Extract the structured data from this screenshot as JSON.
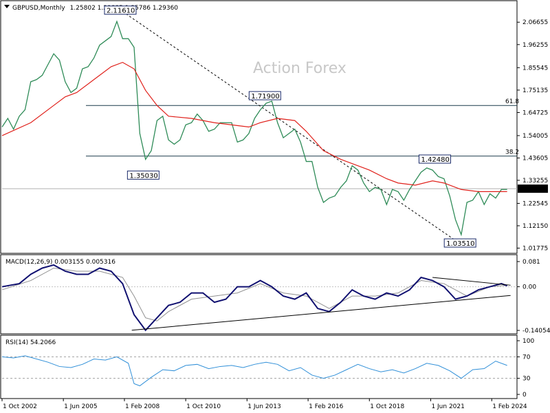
{
  "header": {
    "symbol": "GBPUSD,Monthly",
    "ohlc": "1.25802 1.29885 1.25786 1.29360"
  },
  "watermark": "Action Forex",
  "chart_data": [
    {
      "type": "line",
      "title": "GBPUSD,Monthly",
      "x_ticks": [
        "1 Oct 2002",
        "1 Jun 2005",
        "1 Feb 2008",
        "1 Oct 2010",
        "1 Jun 2013",
        "1 Feb 2016",
        "1 Oct 2018",
        "1 Jun 2021",
        "1 Feb 2024"
      ],
      "y_ticks": [
        "2.06655",
        "1.96255",
        "1.85545",
        "1.75135",
        "1.64725",
        "1.54005",
        "1.43605",
        "1.33255",
        "1.22545",
        "1.12150",
        "1.01775"
      ],
      "ylim": [
        1.0,
        2.16
      ],
      "current_price": "1.29360",
      "series": [
        {
          "name": "",
          "color": "#2e8b57",
          "x": [
            2002.75,
            2003.0,
            2003.25,
            2003.5,
            2003.75,
            2004.0,
            2004.25,
            2004.5,
            2004.75,
            2005.0,
            2005.25,
            2005.5,
            2005.75,
            2006.0,
            2006.25,
            2006.5,
            2006.75,
            2007.0,
            2007.25,
            2007.5,
            2007.75,
            2008.0,
            2008.25,
            2008.5,
            2008.75,
            2009.0,
            2009.25,
            2009.5,
            2009.75,
            2010.0,
            2010.25,
            2010.5,
            2010.75,
            2011.0,
            2011.25,
            2011.5,
            2011.75,
            2012.0,
            2012.25,
            2012.5,
            2012.75,
            2013.0,
            2013.25,
            2013.5,
            2013.75,
            2014.0,
            2014.25,
            2014.5,
            2014.75,
            2015.0,
            2015.25,
            2015.5,
            2015.75,
            2016.0,
            2016.25,
            2016.5,
            2016.75,
            2017.0,
            2017.25,
            2017.5,
            2017.75,
            2018.0,
            2018.25,
            2018.5,
            2018.75,
            2019.0,
            2019.25,
            2019.5,
            2019.75,
            2020.0,
            2020.25,
            2020.5,
            2020.75,
            2021.0,
            2021.25,
            2021.5,
            2021.75,
            2022.0,
            2022.25,
            2022.5,
            2022.75,
            2023.0,
            2023.25,
            2023.5,
            2023.75,
            2024.0,
            2024.25,
            2024.5,
            2024.75
          ],
          "values": [
            1.58,
            1.62,
            1.57,
            1.63,
            1.66,
            1.79,
            1.8,
            1.82,
            1.87,
            1.92,
            1.89,
            1.79,
            1.74,
            1.76,
            1.85,
            1.86,
            1.9,
            1.96,
            1.98,
            2.0,
            2.07,
            1.99,
            1.99,
            1.95,
            1.55,
            1.43,
            1.47,
            1.61,
            1.63,
            1.52,
            1.5,
            1.52,
            1.59,
            1.6,
            1.64,
            1.61,
            1.56,
            1.57,
            1.6,
            1.6,
            1.6,
            1.51,
            1.52,
            1.55,
            1.62,
            1.66,
            1.69,
            1.7,
            1.6,
            1.53,
            1.55,
            1.57,
            1.51,
            1.42,
            1.42,
            1.3,
            1.23,
            1.25,
            1.26,
            1.3,
            1.33,
            1.4,
            1.38,
            1.32,
            1.28,
            1.3,
            1.29,
            1.22,
            1.29,
            1.28,
            1.24,
            1.29,
            1.33,
            1.37,
            1.39,
            1.38,
            1.35,
            1.34,
            1.26,
            1.15,
            1.08,
            1.23,
            1.24,
            1.28,
            1.22,
            1.27,
            1.25,
            1.29,
            1.29
          ]
        },
        {
          "name": "",
          "color": "#e0201a",
          "x": [
            2002.75,
            2004.0,
            2005.0,
            2005.5,
            2006.0,
            2006.75,
            2007.5,
            2008.0,
            2008.5,
            2009.0,
            2009.5,
            2010.0,
            2011.0,
            2012.0,
            2012.75,
            2013.5,
            2014.0,
            2014.75,
            2015.5,
            2016.0,
            2016.75,
            2017.5,
            2018.0,
            2018.75,
            2019.5,
            2020.0,
            2020.75,
            2021.5,
            2022.0,
            2022.75,
            2023.5,
            2024.0,
            2024.75
          ],
          "values": [
            1.54,
            1.6,
            1.68,
            1.72,
            1.74,
            1.8,
            1.86,
            1.88,
            1.85,
            1.75,
            1.68,
            1.63,
            1.62,
            1.6,
            1.59,
            1.58,
            1.6,
            1.62,
            1.61,
            1.56,
            1.47,
            1.43,
            1.41,
            1.38,
            1.34,
            1.32,
            1.31,
            1.33,
            1.32,
            1.29,
            1.28,
            1.28,
            1.28
          ]
        }
      ],
      "annotations": [
        {
          "text": "2.11610",
          "x": 2007.9,
          "y": 2.1161
        },
        {
          "text": "1.71900",
          "x": 2014.2,
          "y": 1.719
        },
        {
          "text": "1.35030",
          "x": 2008.9,
          "y": 1.3503
        },
        {
          "text": "1.42480",
          "x": 2021.6,
          "y": 1.4248
        },
        {
          "text": "1.03510",
          "x": 2022.7,
          "y": 1.0351
        }
      ],
      "levels": [
        {
          "label": "61.8",
          "value": 1.68
        },
        {
          "label": "38.2",
          "value": 1.445
        }
      ]
    },
    {
      "type": "line",
      "title": "MACD(12,26,9) 0.003155 0.005316",
      "x_ticks": [
        "1 Oct 2002",
        "1 Jun 2005",
        "1 Feb 2008",
        "1 Oct 2010",
        "1 Jun 2013",
        "1 Feb 2016",
        "1 Oct 2018",
        "1 Jun 2021",
        "1 Feb 2024"
      ],
      "y_ticks": [
        "0.081",
        "0.00",
        "-0.140543"
      ],
      "ylim": [
        -0.1405,
        0.081
      ],
      "series": [
        {
          "name": "",
          "color": "#101070",
          "x": [
            2002.75,
            2003.5,
            2004.0,
            2004.5,
            2005.0,
            2005.5,
            2006.0,
            2006.5,
            2007.0,
            2007.5,
            2008.0,
            2008.5,
            2009.0,
            2009.5,
            2010.0,
            2010.5,
            2011.0,
            2011.5,
            2012.0,
            2012.5,
            2013.0,
            2013.5,
            2014.0,
            2014.5,
            2015.0,
            2015.5,
            2016.0,
            2016.5,
            2017.0,
            2017.5,
            2018.0,
            2018.5,
            2019.0,
            2019.5,
            2020.0,
            2020.5,
            2021.0,
            2021.5,
            2022.0,
            2022.5,
            2023.0,
            2023.5,
            2024.0,
            2024.5,
            2024.75
          ],
          "values": [
            0.0,
            0.01,
            0.04,
            0.06,
            0.07,
            0.05,
            0.04,
            0.04,
            0.06,
            0.05,
            0.01,
            -0.09,
            -0.14,
            -0.1,
            -0.06,
            -0.05,
            -0.02,
            -0.02,
            -0.05,
            -0.04,
            0.0,
            0.0,
            0.02,
            0.0,
            -0.03,
            -0.04,
            -0.02,
            -0.07,
            -0.08,
            -0.05,
            -0.01,
            -0.03,
            -0.04,
            -0.02,
            -0.03,
            -0.01,
            0.03,
            0.02,
            0.0,
            -0.04,
            -0.03,
            -0.01,
            0.0,
            0.01,
            0.003
          ]
        },
        {
          "name": "",
          "color": "#909090",
          "x": [
            2002.75,
            2004.0,
            2005.0,
            2006.0,
            2007.0,
            2008.0,
            2008.5,
            2009.0,
            2009.5,
            2010.0,
            2011.0,
            2012.0,
            2013.0,
            2014.0,
            2015.0,
            2016.0,
            2017.0,
            2018.0,
            2019.0,
            2020.0,
            2021.0,
            2022.0,
            2023.0,
            2024.0,
            2024.75
          ],
          "values": [
            -0.01,
            0.02,
            0.06,
            0.05,
            0.05,
            0.03,
            -0.03,
            -0.1,
            -0.11,
            -0.08,
            -0.04,
            -0.03,
            -0.02,
            0.01,
            -0.02,
            -0.03,
            -0.07,
            -0.03,
            -0.03,
            -0.02,
            0.02,
            0.01,
            -0.03,
            0.0,
            0.005
          ]
        }
      ]
    },
    {
      "type": "line",
      "title": "RSI(14) 54.2066",
      "x_ticks": [
        "1 Oct 2002",
        "1 Jun 2005",
        "1 Feb 2008",
        "1 Oct 2010",
        "1 Jun 2013",
        "1 Feb 2016",
        "1 Oct 2018",
        "1 Jun 2021",
        "1 Feb 2024"
      ],
      "y_ticks": [
        "100",
        "70",
        "30",
        "0"
      ],
      "ylim": [
        0,
        100
      ],
      "levels": [
        {
          "label": "",
          "value": 70
        },
        {
          "label": "",
          "value": 30
        }
      ],
      "series": [
        {
          "name": "",
          "color": "#2f8fd8",
          "x": [
            2002.75,
            2003.25,
            2003.75,
            2004.25,
            2004.75,
            2005.25,
            2005.75,
            2006.25,
            2006.75,
            2007.25,
            2007.75,
            2008.25,
            2008.5,
            2008.75,
            2009.25,
            2009.75,
            2010.25,
            2010.75,
            2011.25,
            2011.75,
            2012.25,
            2012.75,
            2013.25,
            2013.75,
            2014.25,
            2014.75,
            2015.25,
            2015.75,
            2016.25,
            2016.75,
            2017.25,
            2017.75,
            2018.25,
            2018.75,
            2019.25,
            2019.75,
            2020.25,
            2020.75,
            2021.25,
            2021.75,
            2022.25,
            2022.75,
            2023.25,
            2023.75,
            2024.25,
            2024.75
          ],
          "values": [
            70,
            68,
            72,
            66,
            60,
            52,
            50,
            56,
            66,
            64,
            70,
            58,
            20,
            16,
            32,
            46,
            44,
            54,
            56,
            48,
            52,
            54,
            50,
            56,
            60,
            56,
            44,
            50,
            36,
            30,
            36,
            46,
            56,
            48,
            42,
            46,
            40,
            48,
            58,
            54,
            44,
            30,
            46,
            48,
            62,
            54
          ]
        }
      ]
    }
  ]
}
